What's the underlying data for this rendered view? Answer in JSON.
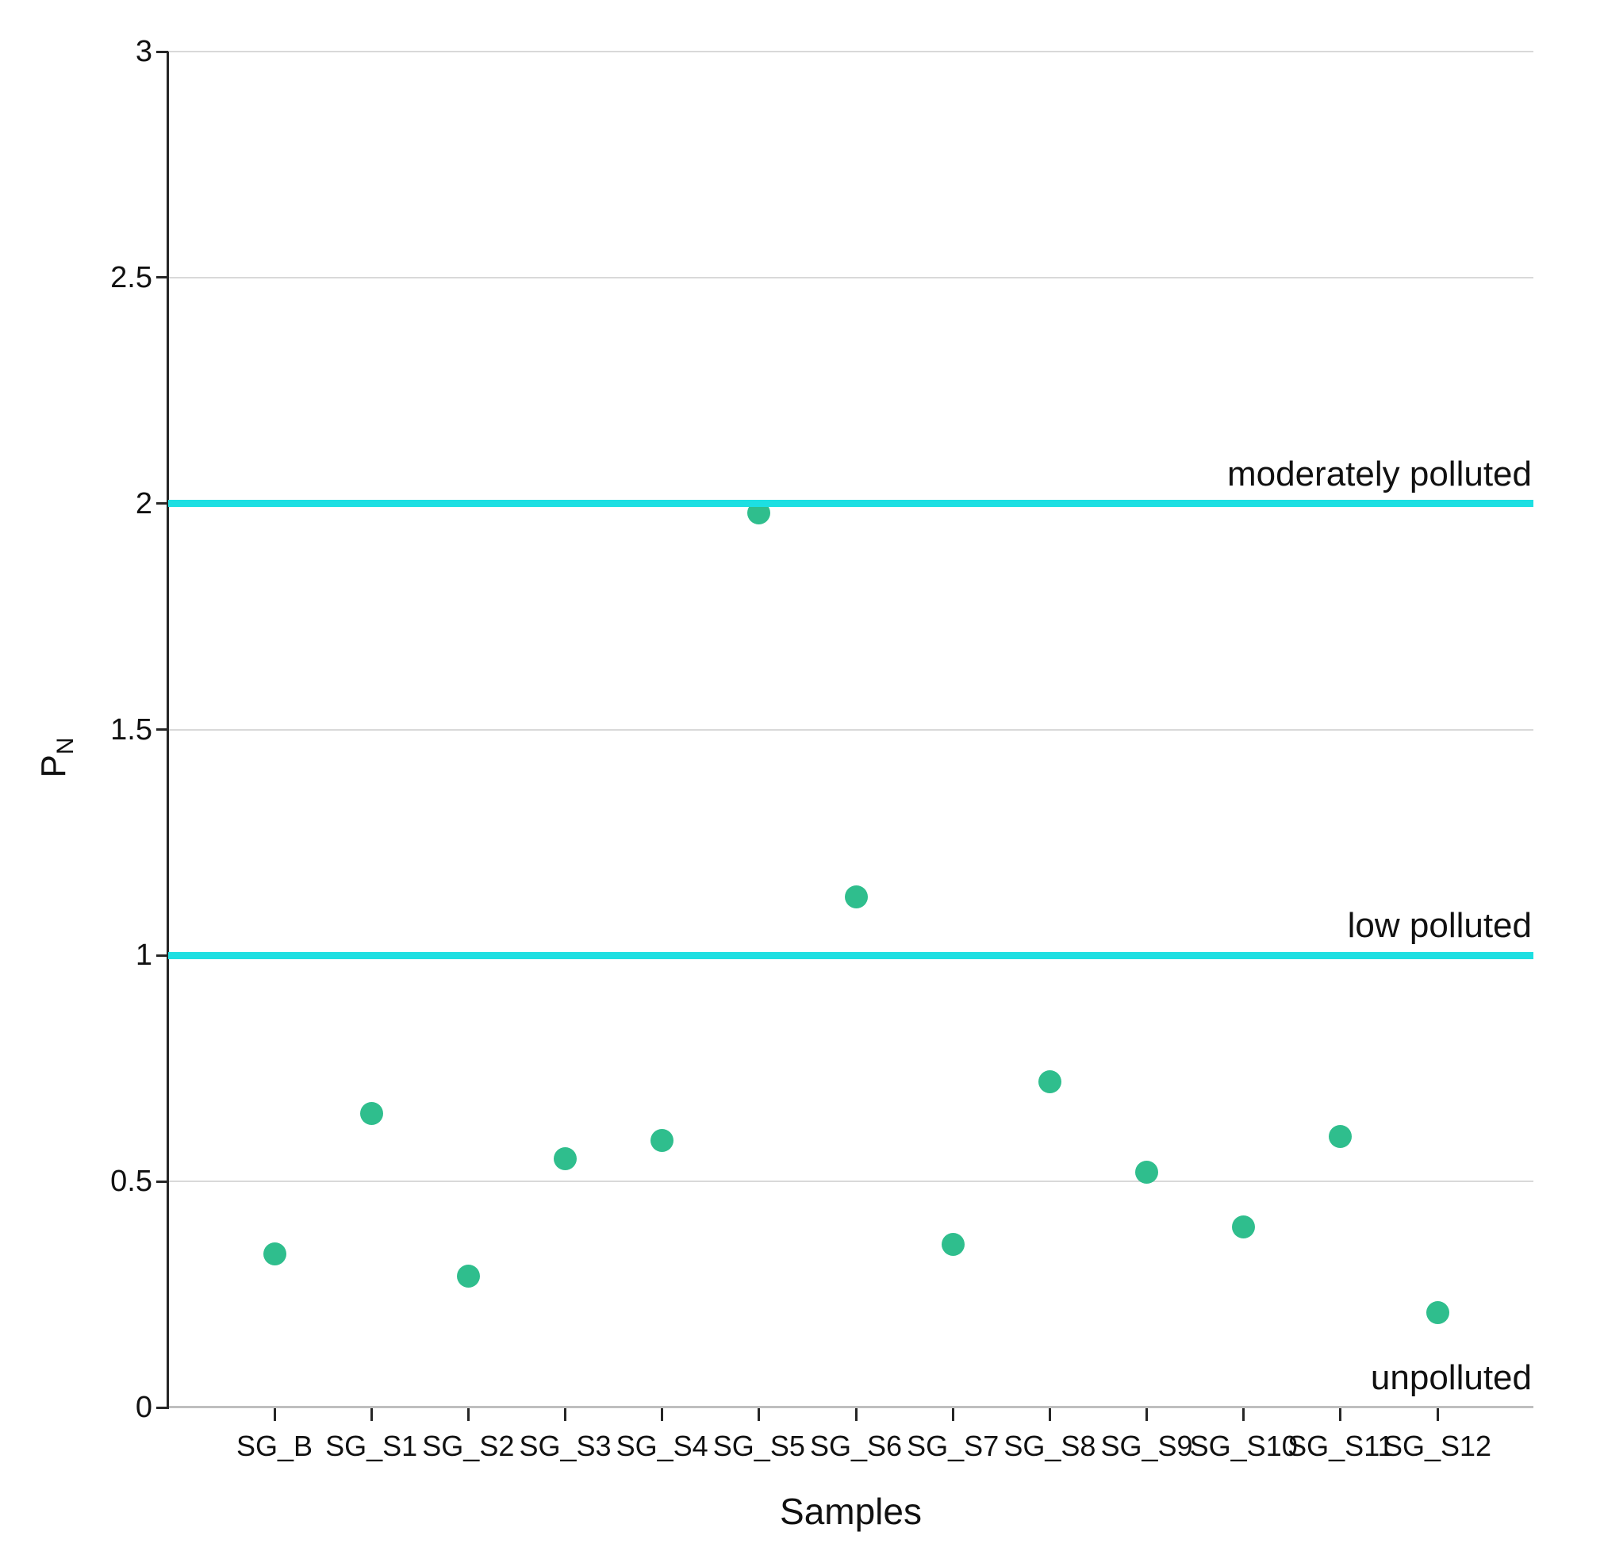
{
  "chart_data": {
    "type": "scatter",
    "title": "",
    "xlabel": "Samples",
    "ylabel_main": "P",
    "ylabel_sub": "N",
    "ylim": [
      0,
      3
    ],
    "yticks": [
      0,
      0.5,
      1,
      1.5,
      2,
      2.5,
      3
    ],
    "ytick_labels": [
      "0",
      "0.5",
      "1",
      "1.5",
      "2",
      "2.5",
      "3"
    ],
    "grid": "horizontal",
    "legend": "none",
    "categories": [
      "SG_B",
      "SG_S1",
      "SG_S2",
      "SG_S3",
      "SG_S4",
      "SG_S5",
      "SG_S6",
      "SG_S7",
      "SG_S8",
      "SG_S9",
      "SG_S10",
      "SG_S11",
      "SG_S12"
    ],
    "series": [
      {
        "name": "PN",
        "values": [
          0.34,
          0.65,
          0.29,
          0.55,
          0.59,
          1.98,
          1.13,
          0.36,
          0.72,
          0.52,
          0.4,
          0.6,
          0.21
        ]
      }
    ],
    "thresholds": [
      {
        "value": 2,
        "label": "moderately polluted"
      },
      {
        "value": 1,
        "label": "low polluted"
      }
    ],
    "annotations": [
      {
        "label": "unpolluted",
        "position": "above-x-axis-right"
      }
    ],
    "colors": {
      "point": "#2fbe8d",
      "threshold_line": "#1ddfe2",
      "gridline": "#d9d9d9",
      "x_axis_line": "#bfbfbf",
      "y_axis_line": "#262626",
      "text": "#111111"
    }
  }
}
